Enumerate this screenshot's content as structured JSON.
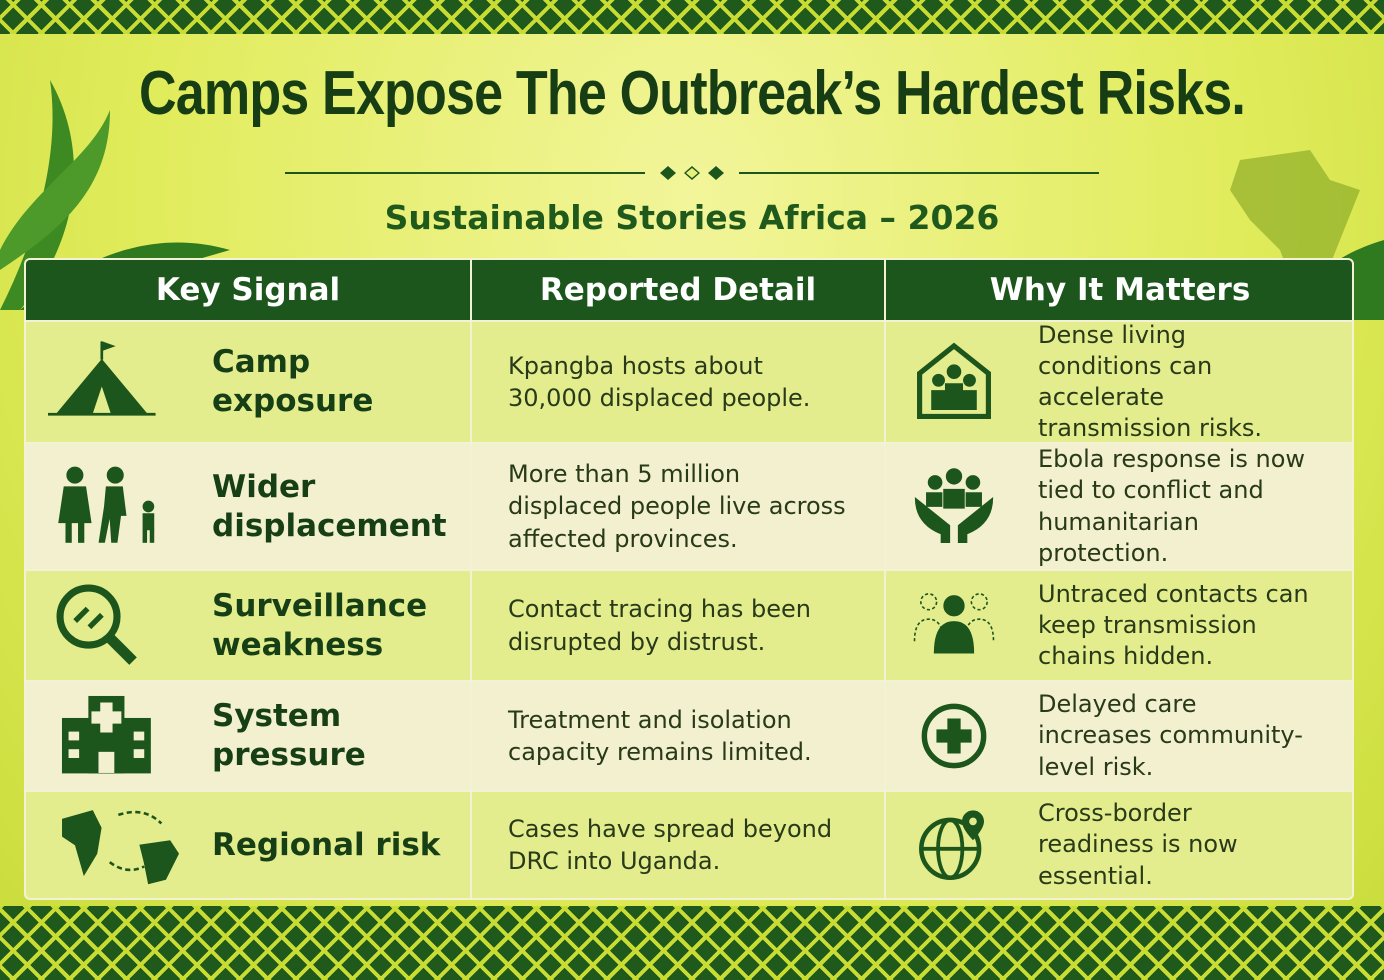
{
  "header": {
    "title": "Camps Expose The Outbreak’s Hardest Risks.",
    "subtitle": "Sustainable Stories Africa – 2026"
  },
  "table": {
    "columns": [
      "Key Signal",
      "Reported Detail",
      "Why It Matters"
    ],
    "rows": [
      [
        "Camp exposure",
        "Kpangba hosts about 30,000 displaced people.",
        "Dense living conditions can accelerate transmission risks."
      ],
      [
        "Wider displacement",
        "More than 5 million displaced people live across affected provinces.",
        "Ebola response is now tied to conflict and humanitarian protection."
      ],
      [
        "Surveillance weakness",
        "Contact tracing has been disrupted by distrust.",
        "Untraced contacts can keep transmission chains hidden."
      ],
      [
        "System pressure",
        "Treatment and isolation capacity remains limited.",
        "Delayed care increases community-level risk."
      ],
      [
        "Regional risk",
        "Cases have spread beyond DRC into Uganda.",
        "Cross-border readiness is now essential."
      ]
    ]
  }
}
